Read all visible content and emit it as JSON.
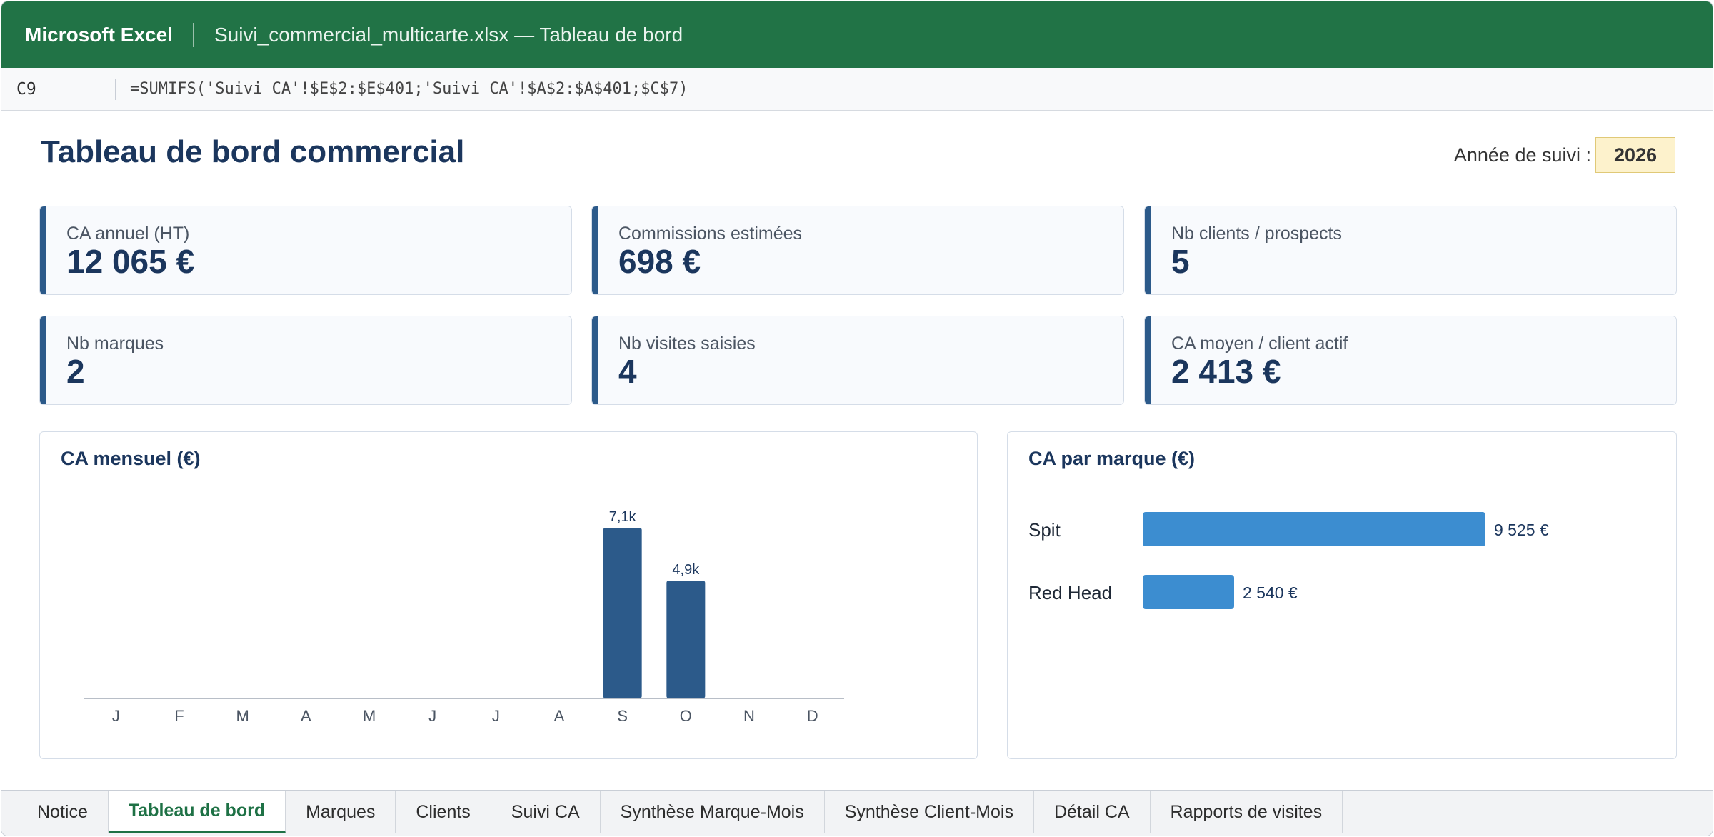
{
  "titlebar": {
    "app_name": "Microsoft Excel",
    "document": "Suivi_commercial_multicarte.xlsx — Tableau de bord"
  },
  "formula_bar": {
    "cell": "C9",
    "formula": "=SUMIFS('Suivi CA'!$E$2:$E$401;'Suivi CA'!$A$2:$A$401;$C$7)"
  },
  "dashboard": {
    "title": "Tableau de bord commercial",
    "year_label": "Année de suivi :",
    "year": "2026"
  },
  "kpis": [
    {
      "label": "CA annuel (HT)",
      "value": "12 065 €"
    },
    {
      "label": "Commissions estimées",
      "value": "698 €"
    },
    {
      "label": "Nb clients / prospects",
      "value": "5"
    },
    {
      "label": "Nb marques",
      "value": "2"
    },
    {
      "label": "Nb visites saisies",
      "value": "4"
    },
    {
      "label": "CA moyen / client actif",
      "value": "2 413 €"
    }
  ],
  "chart_data": [
    {
      "type": "bar",
      "title": "CA mensuel (€)",
      "categories": [
        "J",
        "F",
        "M",
        "A",
        "M",
        "J",
        "J",
        "A",
        "S",
        "O",
        "N",
        "D"
      ],
      "values": [
        0,
        0,
        0,
        0,
        0,
        0,
        0,
        0,
        7100,
        4900,
        0,
        0
      ],
      "data_labels": [
        "",
        "",
        "",
        "",
        "",
        "",
        "",
        "",
        "7,1k",
        "4,9k",
        "",
        ""
      ],
      "xlabel": "",
      "ylabel": "",
      "ylim": [
        0,
        7100
      ],
      "color": "#2c5a8a"
    },
    {
      "type": "bar",
      "orientation": "horizontal",
      "title": "CA par marque (€)",
      "categories": [
        "Spit",
        "Red Head"
      ],
      "values": [
        9525,
        2540
      ],
      "data_labels": [
        "9 525 €",
        "2 540 €"
      ],
      "color": "#3c8dd0"
    }
  ],
  "tabs": [
    {
      "label": "Notice",
      "active": false
    },
    {
      "label": "Tableau de bord",
      "active": true
    },
    {
      "label": "Marques",
      "active": false
    },
    {
      "label": "Clients",
      "active": false
    },
    {
      "label": "Suivi CA",
      "active": false
    },
    {
      "label": "Synthèse Marque-Mois",
      "active": false
    },
    {
      "label": "Synthèse Client-Mois",
      "active": false
    },
    {
      "label": "Détail CA",
      "active": false
    },
    {
      "label": "Rapports de visites",
      "active": false
    }
  ]
}
